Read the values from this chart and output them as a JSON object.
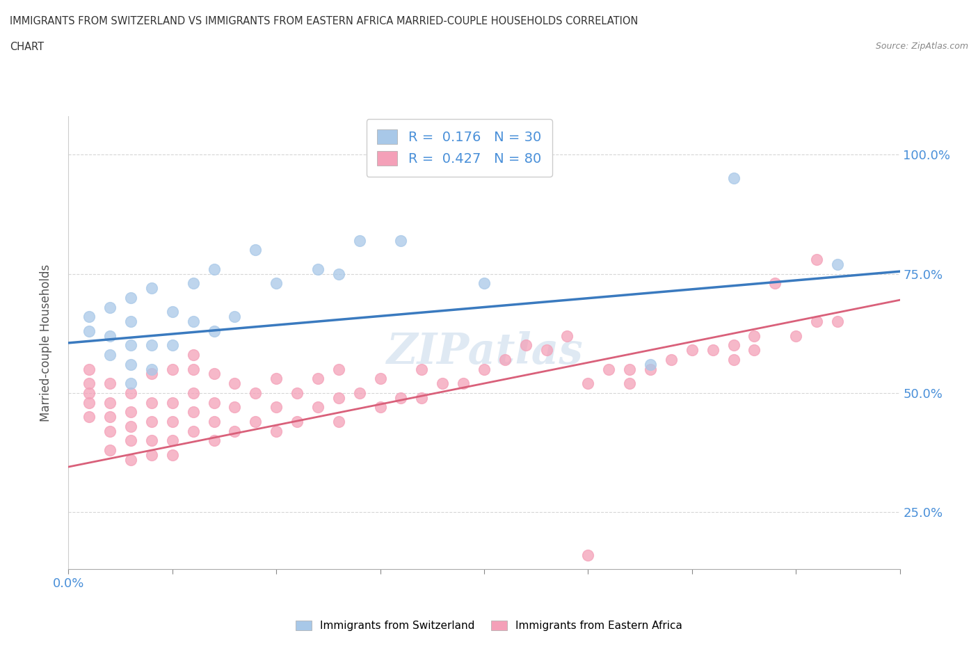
{
  "title_line1": "IMMIGRANTS FROM SWITZERLAND VS IMMIGRANTS FROM EASTERN AFRICA MARRIED-COUPLE HOUSEHOLDS CORRELATION",
  "title_line2": "CHART",
  "source_text": "Source: ZipAtlas.com",
  "ylabel": "Married-couple Households",
  "xlim": [
    0.0,
    0.4
  ],
  "ylim": [
    0.13,
    1.08
  ],
  "ytick_labels": [
    "25.0%",
    "50.0%",
    "75.0%",
    "100.0%"
  ],
  "ytick_values": [
    0.25,
    0.5,
    0.75,
    1.0
  ],
  "xtick_values": [
    0.0,
    0.05,
    0.1,
    0.15,
    0.2,
    0.25,
    0.3,
    0.35,
    0.4
  ],
  "xtick_labels_show": {
    "0.0": "0.0%"
  },
  "switzerland_color": "#a8c8e8",
  "eastern_africa_color": "#f4a0b8",
  "swiss_line_color": "#3a7abf",
  "ea_line_color": "#d9607a",
  "R_swiss": 0.176,
  "N_swiss": 30,
  "R_ea": 0.427,
  "N_ea": 80,
  "legend_label_swiss": "Immigrants from Switzerland",
  "legend_label_ea": "Immigrants from Eastern Africa",
  "watermark": "ZIPatlas",
  "swiss_x": [
    0.01,
    0.01,
    0.02,
    0.02,
    0.02,
    0.03,
    0.03,
    0.03,
    0.03,
    0.03,
    0.04,
    0.04,
    0.04,
    0.05,
    0.05,
    0.06,
    0.06,
    0.07,
    0.07,
    0.08,
    0.09,
    0.1,
    0.12,
    0.13,
    0.14,
    0.16,
    0.2,
    0.28,
    0.32,
    0.37
  ],
  "swiss_y": [
    0.63,
    0.66,
    0.58,
    0.62,
    0.68,
    0.52,
    0.56,
    0.6,
    0.65,
    0.7,
    0.55,
    0.6,
    0.72,
    0.6,
    0.67,
    0.65,
    0.73,
    0.63,
    0.76,
    0.66,
    0.8,
    0.73,
    0.76,
    0.75,
    0.82,
    0.82,
    0.73,
    0.56,
    0.95,
    0.77
  ],
  "ea_x": [
    0.01,
    0.01,
    0.01,
    0.01,
    0.01,
    0.02,
    0.02,
    0.02,
    0.02,
    0.02,
    0.03,
    0.03,
    0.03,
    0.03,
    0.03,
    0.04,
    0.04,
    0.04,
    0.04,
    0.04,
    0.05,
    0.05,
    0.05,
    0.05,
    0.05,
    0.06,
    0.06,
    0.06,
    0.06,
    0.06,
    0.07,
    0.07,
    0.07,
    0.07,
    0.08,
    0.08,
    0.08,
    0.09,
    0.09,
    0.1,
    0.1,
    0.1,
    0.11,
    0.11,
    0.12,
    0.12,
    0.13,
    0.13,
    0.13,
    0.14,
    0.15,
    0.15,
    0.16,
    0.17,
    0.17,
    0.18,
    0.19,
    0.2,
    0.21,
    0.22,
    0.23,
    0.24,
    0.25,
    0.25,
    0.26,
    0.27,
    0.27,
    0.28,
    0.29,
    0.3,
    0.31,
    0.32,
    0.32,
    0.33,
    0.33,
    0.34,
    0.35,
    0.36,
    0.36,
    0.37
  ],
  "ea_y": [
    0.45,
    0.48,
    0.5,
    0.52,
    0.55,
    0.38,
    0.42,
    0.45,
    0.48,
    0.52,
    0.36,
    0.4,
    0.43,
    0.46,
    0.5,
    0.37,
    0.4,
    0.44,
    0.48,
    0.54,
    0.37,
    0.4,
    0.44,
    0.48,
    0.55,
    0.42,
    0.46,
    0.5,
    0.55,
    0.58,
    0.4,
    0.44,
    0.48,
    0.54,
    0.42,
    0.47,
    0.52,
    0.44,
    0.5,
    0.42,
    0.47,
    0.53,
    0.44,
    0.5,
    0.47,
    0.53,
    0.44,
    0.49,
    0.55,
    0.5,
    0.47,
    0.53,
    0.49,
    0.49,
    0.55,
    0.52,
    0.52,
    0.55,
    0.57,
    0.6,
    0.59,
    0.62,
    0.16,
    0.52,
    0.55,
    0.52,
    0.55,
    0.55,
    0.57,
    0.59,
    0.59,
    0.57,
    0.6,
    0.59,
    0.62,
    0.73,
    0.62,
    0.65,
    0.78,
    0.65
  ],
  "grid_color": "#cccccc",
  "tick_label_color": "#4a90d9",
  "ylabel_color": "#555555"
}
